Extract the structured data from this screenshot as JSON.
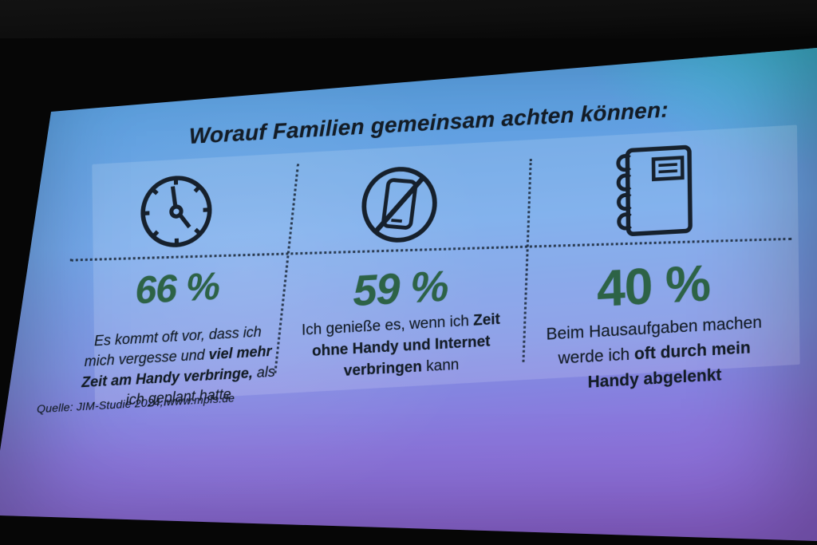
{
  "slide": {
    "title": "Worauf Familien gemeinsam achten können:",
    "columns": [
      {
        "icon": "clock-icon",
        "percent": "66 %",
        "text_segments": [
          {
            "text": "Es kommt oft vor, dass ich mich vergesse und ",
            "bold": false
          },
          {
            "text": "viel mehr Zeit am Handy verbringe,",
            "bold": true
          },
          {
            "text": " als ich geplant hatte",
            "bold": false
          }
        ]
      },
      {
        "icon": "no-phone-icon",
        "percent": "59 %",
        "text_segments": [
          {
            "text": "Ich genieße es, wenn ich ",
            "bold": false
          },
          {
            "text": "Zeit ohne Handy und Internet verbringen",
            "bold": true
          },
          {
            "text": " kann",
            "bold": false
          }
        ]
      },
      {
        "icon": "notebook-icon",
        "percent": "40 %",
        "text_segments": [
          {
            "text": "Beim Hausaufgaben machen werde ich ",
            "bold": false
          },
          {
            "text": "oft durch mein Handy abgelenkt",
            "bold": true
          }
        ]
      }
    ],
    "source": "Quelle: JIM-Studie 2024, www.mpfs.de",
    "colors": {
      "percent_green": "#2d6346",
      "text_dark": "#131c26",
      "slide_teal": "#2ccecd",
      "slide_blue": "#6fa5ea",
      "slide_purple": "#9166d8"
    }
  }
}
